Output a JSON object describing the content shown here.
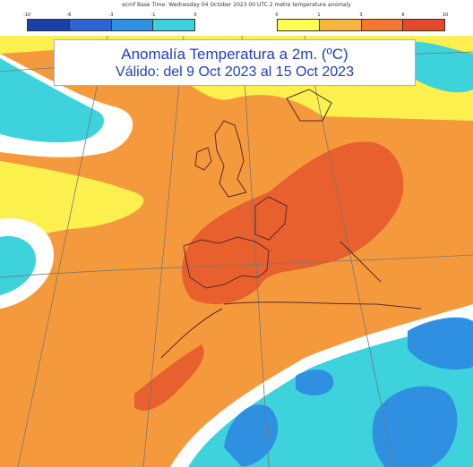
{
  "header": {
    "text": "ecmf  Base Time: Wednesday 04 October 2023 00 UTC 2 metre temperature anomaly"
  },
  "legend": {
    "cold": {
      "ticks": [
        "-10",
        "-6",
        "-3",
        "-1",
        "0"
      ],
      "colors": [
        "#1a3fa8",
        "#2e64d2",
        "#2f8fe0",
        "#3ed0dc"
      ]
    },
    "warm": {
      "ticks": [
        "0",
        "1",
        "3",
        "6",
        "10"
      ],
      "colors": [
        "#ffff50",
        "#f8b340",
        "#f07830",
        "#e24a28"
      ]
    }
  },
  "title": {
    "line1": "Anomalía Temperatura a 2m. (ºC)",
    "line2": "Válido: del 9 Oct 2023 al 15 Oct 2023"
  },
  "colors": {
    "deep_warm": "#e8602e",
    "warm": "#f59a3c",
    "mild_warm": "#fbf04e",
    "neutral": "#ffffff",
    "mild_cold": "#3dd2dc",
    "cold": "#2f8fe0",
    "coast": "#5a2a2a",
    "grid": "#777777"
  }
}
